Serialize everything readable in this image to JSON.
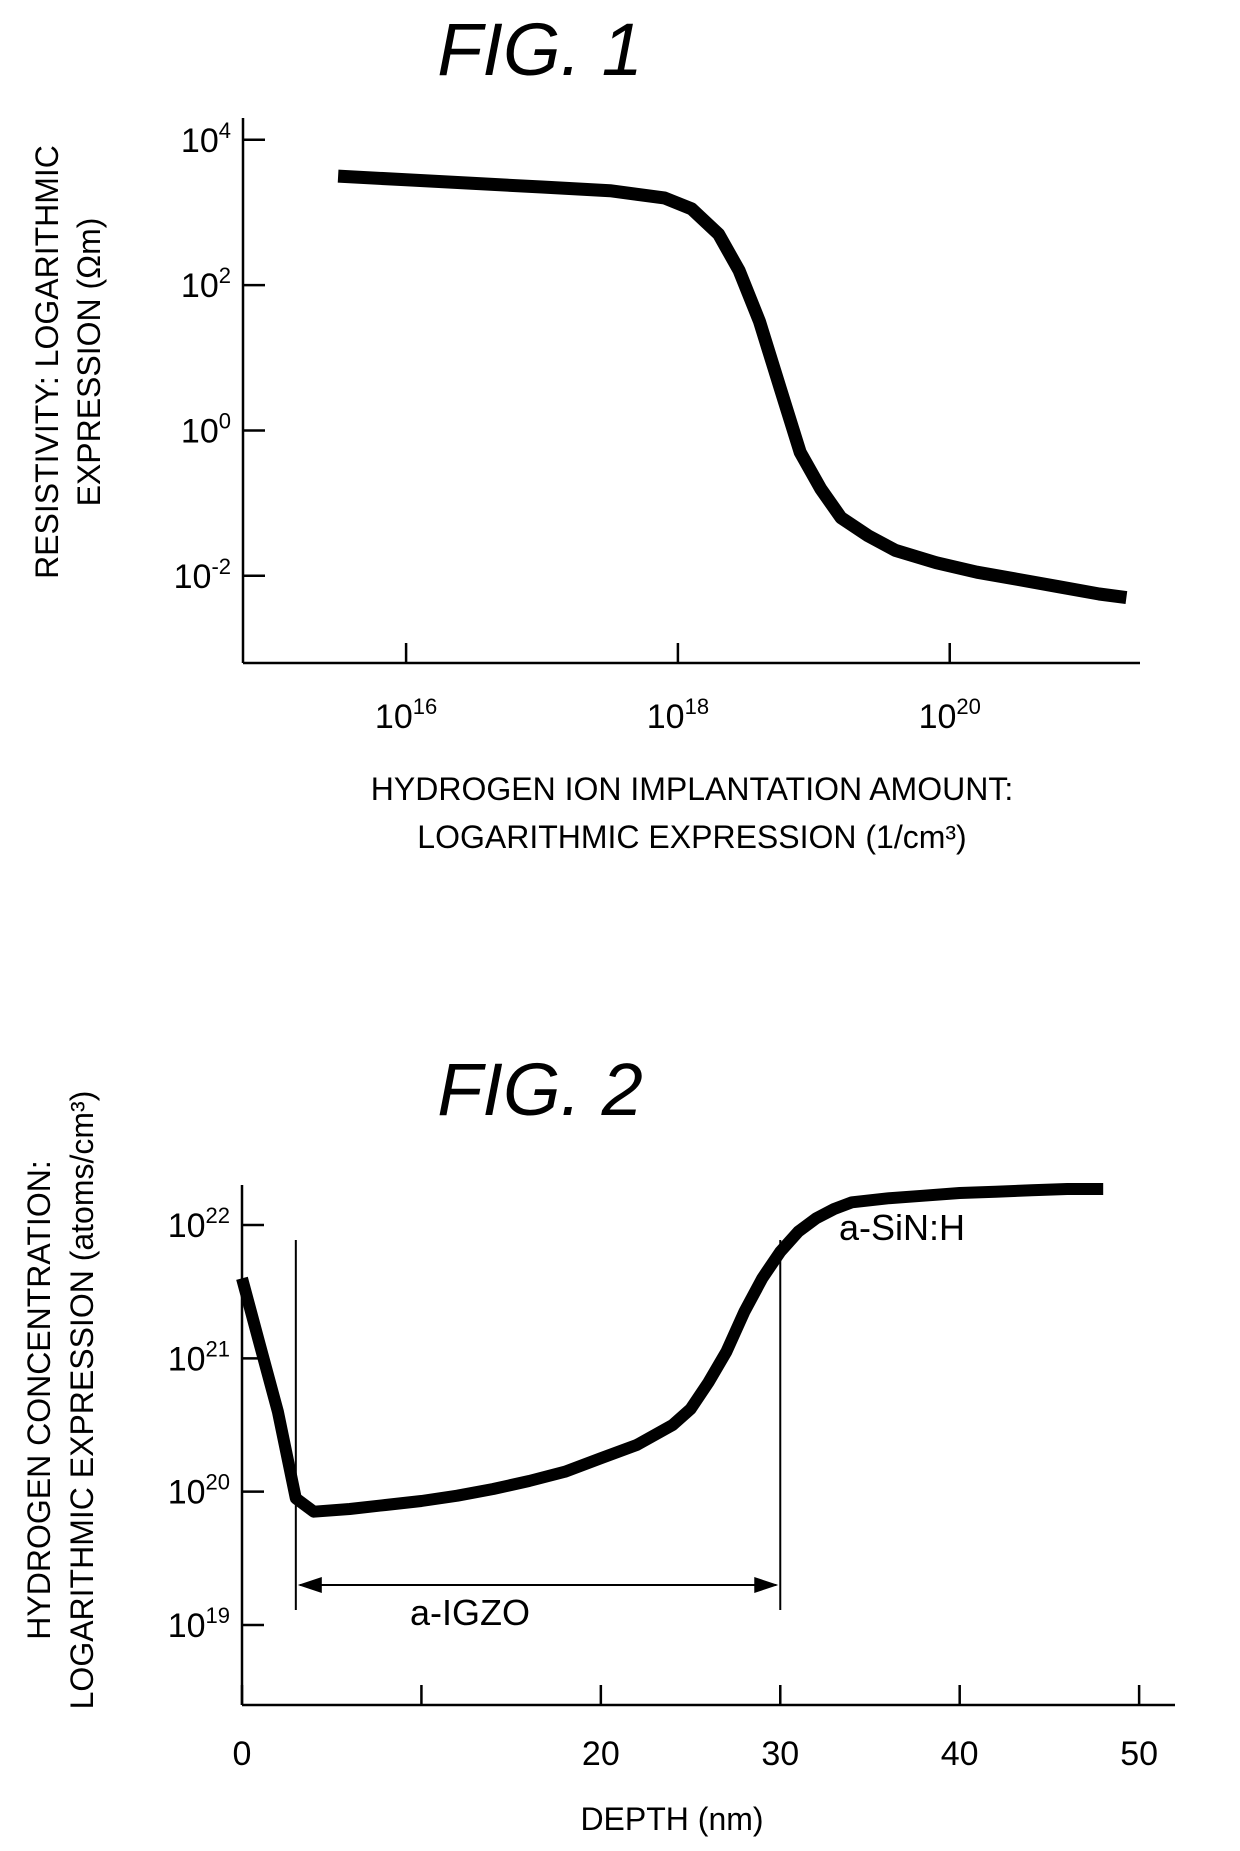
{
  "chart_data": [
    {
      "type": "line",
      "title": "FIG. 1",
      "xlabel": [
        "HYDROGEN ION IMPLANTATION AMOUNT:",
        "LOGARITHMIC EXPRESSION (1/cm³)"
      ],
      "ylabel": [
        "RESISTIVITY: LOGARITHMIC",
        "EXPRESSION (Ωm)"
      ],
      "x_scale": "log",
      "y_scale": "log",
      "x_ticks": [
        {
          "value": 16,
          "base": "10",
          "exp": "16"
        },
        {
          "value": 18,
          "base": "10",
          "exp": "18"
        },
        {
          "value": 20,
          "base": "10",
          "exp": "20"
        }
      ],
      "y_ticks": [
        {
          "value": 4,
          "base": "10",
          "exp": "4"
        },
        {
          "value": 2,
          "base": "10",
          "exp": "2"
        },
        {
          "value": 0,
          "base": "10",
          "exp": "0"
        },
        {
          "value": -2,
          "base": "10",
          "exp": "-2"
        }
      ],
      "xlim": [
        14.8,
        21.4
      ],
      "ylim": [
        -3.2,
        4.3
      ],
      "series": [
        {
          "x": [
            15.5,
            16.0,
            16.5,
            17.0,
            17.5,
            17.9,
            18.1,
            18.3,
            18.45,
            18.6,
            18.75,
            18.9,
            19.05,
            19.2,
            19.4,
            19.6,
            19.9,
            20.2,
            20.5,
            20.8,
            21.1,
            21.3
          ],
          "y": [
            3.5,
            3.45,
            3.4,
            3.35,
            3.3,
            3.2,
            3.05,
            2.7,
            2.2,
            1.5,
            0.6,
            -0.3,
            -0.8,
            -1.2,
            -1.45,
            -1.65,
            -1.82,
            -1.95,
            -2.05,
            -2.15,
            -2.25,
            -2.3
          ]
        }
      ]
    },
    {
      "type": "line",
      "title": "FIG. 2",
      "xlabel": "DEPTH (nm)",
      "ylabel": [
        "HYDROGEN CONCENTRATION:",
        "LOGARITHMIC EXPRESSION (atoms/cm³)"
      ],
      "y_scale": "log",
      "x_ticks": [
        0,
        10,
        20,
        30,
        40,
        50
      ],
      "x_tick_labels": [
        "0",
        "20",
        "30",
        "40",
        "50"
      ],
      "x_tick_label_values": [
        0,
        20,
        30,
        40,
        50
      ],
      "y_ticks": [
        {
          "value": 22,
          "base": "10",
          "exp": "22"
        },
        {
          "value": 21,
          "base": "10",
          "exp": "21"
        },
        {
          "value": 20,
          "base": "10",
          "exp": "20"
        },
        {
          "value": 19,
          "base": "10",
          "exp": "19"
        }
      ],
      "xlim": [
        0,
        52
      ],
      "ylim": [
        18.4,
        22.3
      ],
      "series": [
        {
          "x": [
            0,
            1,
            2,
            3,
            4,
            6,
            8,
            10,
            12,
            14,
            16,
            18,
            20,
            22,
            24,
            25,
            26,
            27,
            28,
            29,
            30,
            31,
            32,
            33,
            34,
            36,
            38,
            40,
            42,
            44,
            46,
            48
          ],
          "y": [
            21.6,
            21.1,
            20.6,
            19.95,
            19.85,
            19.87,
            19.9,
            19.93,
            19.97,
            20.02,
            20.08,
            20.15,
            20.25,
            20.35,
            20.5,
            20.62,
            20.82,
            21.05,
            21.35,
            21.6,
            21.8,
            21.95,
            22.05,
            22.12,
            22.17,
            22.2,
            22.22,
            22.24,
            22.25,
            22.26,
            22.27,
            22.27
          ]
        }
      ],
      "region_bounds": [
        3,
        30
      ],
      "annotations": [
        "a-IGZO",
        "a-SiN:H"
      ]
    }
  ]
}
